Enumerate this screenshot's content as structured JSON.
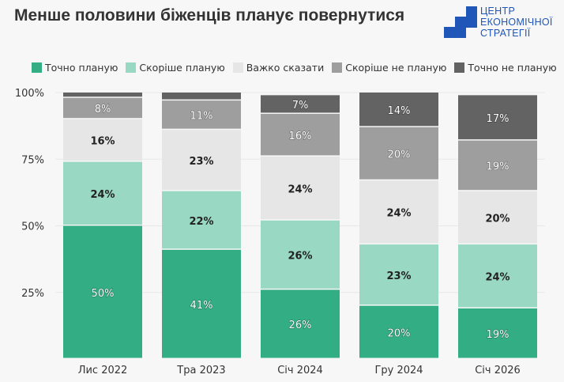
{
  "title": "Менше половини біженців планує повернутися",
  "logo": {
    "lines": [
      "ЦЕНТР",
      "ЕКОНОМІЧНОЇ",
      "СТРАТЕГІЇ"
    ]
  },
  "chart_data": {
    "type": "bar",
    "stacked": true,
    "categories": [
      "Лис 2022",
      "Тра 2023",
      "Січ 2024",
      "Гру 2024",
      "Січ 2026"
    ],
    "series": [
      {
        "name": "Точно планую",
        "color": "#33ad84",
        "values": [
          50,
          41,
          26,
          20,
          19
        ]
      },
      {
        "name": "Скоріше планую",
        "color": "#99d8c3",
        "values": [
          24,
          22,
          26,
          23,
          24
        ]
      },
      {
        "name": "Важко сказати",
        "color": "#e6e6e6",
        "values": [
          16,
          23,
          24,
          24,
          20
        ]
      },
      {
        "name": "Скоріше не планую",
        "color": "#9e9e9e",
        "values": [
          8,
          11,
          16,
          20,
          19
        ]
      },
      {
        "name": "Точно не планую",
        "color": "#636363",
        "values": [
          2,
          3,
          7,
          14,
          17
        ]
      }
    ],
    "data_labels": [
      [
        "50%",
        "24%",
        "16%",
        "8%",
        ""
      ],
      [
        "41%",
        "22%",
        "23%",
        "11%",
        ""
      ],
      [
        "26%",
        "26%",
        "24%",
        "16%",
        "7%"
      ],
      [
        "20%",
        "23%",
        "24%",
        "20%",
        "14%"
      ],
      [
        "19%",
        "24%",
        "20%",
        "19%",
        "17%"
      ]
    ],
    "yticks": [
      "25%",
      "50%",
      "75%",
      "100%"
    ],
    "ytick_values": [
      25,
      50,
      75,
      100
    ],
    "ylim": [
      0,
      100
    ],
    "legend_position": "top",
    "grid": true
  }
}
